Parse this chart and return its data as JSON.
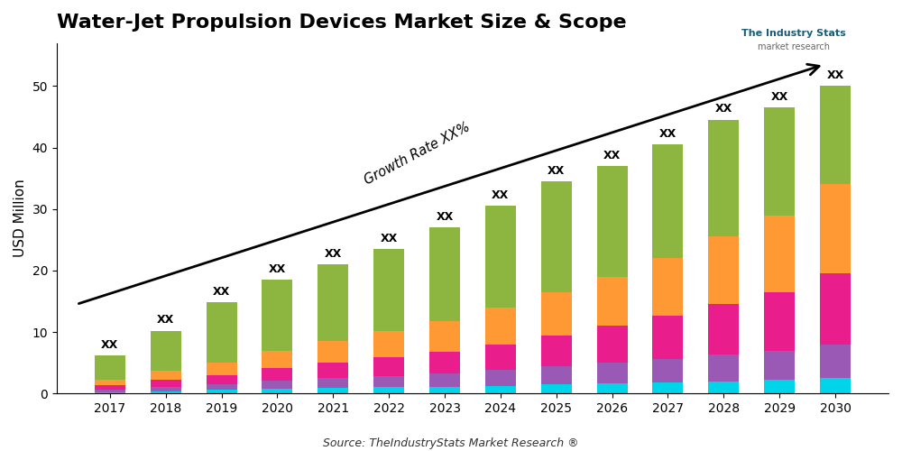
{
  "title": "Water-Jet Propulsion Devices Market Size & Scope",
  "ylabel": "USD Million",
  "source_text": "Source: TheIndustryStats Market Research ®",
  "growth_rate_label": "Growth Rate XX%",
  "years": [
    2017,
    2018,
    2019,
    2020,
    2021,
    2022,
    2023,
    2024,
    2025,
    2026,
    2027,
    2028,
    2029,
    2030
  ],
  "bar_label": "XX",
  "totals": [
    6.2,
    10.2,
    14.8,
    18.5,
    21.0,
    23.5,
    27.0,
    30.5,
    34.5,
    37.0,
    40.5,
    44.5,
    46.5,
    50.0
  ],
  "segments": {
    "cyan": [
      0.25,
      0.4,
      0.6,
      0.8,
      0.9,
      1.0,
      1.1,
      1.2,
      1.5,
      1.6,
      1.8,
      2.0,
      2.2,
      2.5
    ],
    "purple": [
      0.4,
      0.7,
      0.9,
      1.3,
      1.6,
      1.9,
      2.2,
      2.6,
      3.0,
      3.4,
      3.8,
      4.3,
      4.8,
      5.5
    ],
    "magenta": [
      0.65,
      1.1,
      1.5,
      2.1,
      2.5,
      3.0,
      3.5,
      4.2,
      5.0,
      6.0,
      7.0,
      8.2,
      9.5,
      11.5
    ],
    "orange": [
      0.9,
      1.5,
      2.0,
      2.8,
      3.5,
      4.3,
      5.0,
      6.0,
      7.0,
      8.0,
      9.4,
      11.0,
      12.5,
      14.5
    ],
    "green": [
      4.0,
      6.5,
      9.8,
      11.5,
      12.5,
      13.3,
      15.2,
      16.5,
      18.0,
      18.0,
      18.5,
      19.0,
      17.5,
      16.0
    ]
  },
  "colors": {
    "cyan": "#00d4e8",
    "purple": "#9b59b6",
    "magenta": "#e91e8c",
    "orange": "#ff9933",
    "green": "#8db641"
  },
  "ylim": [
    0,
    57
  ],
  "yticks": [
    0,
    10,
    20,
    30,
    40,
    50
  ],
  "background_color": "#ffffff",
  "title_fontsize": 16,
  "axis_fontsize": 11
}
